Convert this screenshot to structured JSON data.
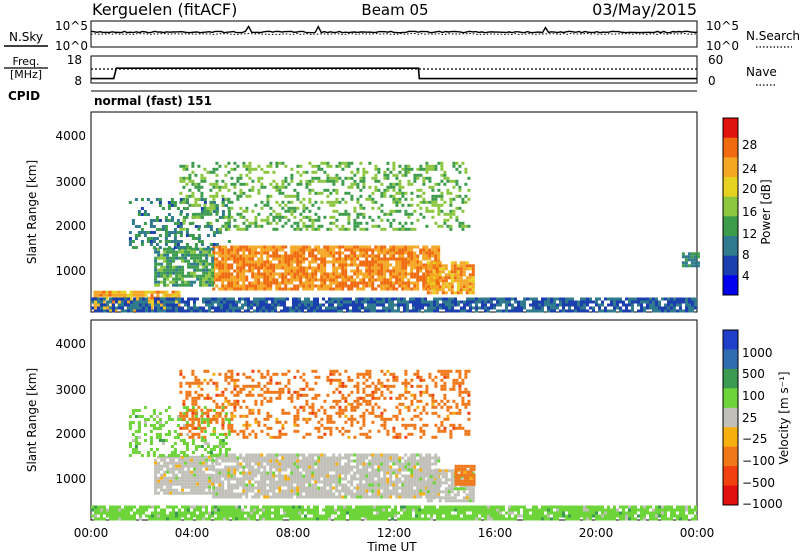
{
  "header": {
    "station": "Kerguelen (fitACF)",
    "beam": "Beam 05",
    "date": "03/May/2015"
  },
  "chart_data": [
    {
      "type": "line",
      "panel": "noise",
      "labels": {
        "left": "N.Sky",
        "right": "N.Search"
      },
      "left_ticks": [
        "10^5",
        "10^0"
      ],
      "right_ticks": [
        "10^5",
        "10^0"
      ]
    },
    {
      "type": "line",
      "panel": "frequency",
      "labels": {
        "left_top": "Freq.",
        "left_bottom": "[MHz]",
        "right": "Nave"
      },
      "left_ticks": [
        "18",
        "8"
      ],
      "right_ticks": [
        "60",
        "0"
      ],
      "freq_mhz": [
        {
          "t": 0.0,
          "v": 9.3
        },
        {
          "t": 0.9,
          "v": 9.3
        },
        {
          "t": 1.0,
          "v": 13.3
        },
        {
          "t": 12.97,
          "v": 13.3
        },
        {
          "t": 13.0,
          "v": 9.3
        },
        {
          "t": 24.0,
          "v": 9.3
        }
      ],
      "nave_level": 30
    },
    {
      "type": "table",
      "panel": "cpid",
      "label": "CPID",
      "text": "normal (fast) 151"
    },
    {
      "type": "heatmap",
      "panel": "power",
      "ylabel": "Slant Range [km]",
      "yticks": [
        "1000",
        "2000",
        "3000",
        "4000"
      ],
      "ylim": [
        180,
        4600
      ],
      "xlim": [
        0,
        24
      ],
      "colorbar": {
        "label": "Power [dB]",
        "ticks": [
          "4",
          "8",
          "12",
          "16",
          "20",
          "24",
          "28"
        ],
        "range": [
          0,
          32
        ],
        "colors": [
          "#0000ee",
          "#1c3fb0",
          "#2f7a8c",
          "#3c9c4c",
          "#8cc63f",
          "#e6d020",
          "#f5a623",
          "#f06a10",
          "#e0140c"
        ]
      },
      "regions": [
        {
          "t0": 4.8,
          "t1": 13.8,
          "r0": 700,
          "r1": 1650,
          "level": 26
        },
        {
          "t0": 13.3,
          "t1": 15.2,
          "r0": 600,
          "r1": 1300,
          "level": 24
        },
        {
          "t0": 0.1,
          "t1": 3.5,
          "r0": 250,
          "r1": 650,
          "level": 23
        },
        {
          "t0": 2.5,
          "t1": 4.8,
          "r0": 800,
          "r1": 1600,
          "level": 12
        },
        {
          "t0": 1.5,
          "t1": 5.5,
          "r0": 1600,
          "r1": 2700,
          "level": 9
        },
        {
          "t0": 3.5,
          "t1": 15.0,
          "r0": 2000,
          "r1": 3500,
          "level": 14
        },
        {
          "t0": 0.0,
          "t1": 24.0,
          "r0": 190,
          "r1": 500,
          "level": 6
        },
        {
          "t0": 23.4,
          "t1": 24.0,
          "r0": 1200,
          "r1": 1500,
          "level": 10
        }
      ]
    },
    {
      "type": "heatmap",
      "panel": "velocity",
      "ylabel": "Slant Range [km]",
      "yticks": [
        "1000",
        "2000",
        "3000",
        "4000"
      ],
      "ylim": [
        180,
        4600
      ],
      "xlim": [
        0,
        24
      ],
      "xticks": [
        "00:00",
        "04:00",
        "08:00",
        "12:00",
        "16:00",
        "20:00",
        "00:00"
      ],
      "xlabel": "Time UT",
      "colorbar": {
        "label": "Velocity [m s⁻¹]",
        "ticks": [
          "1000",
          "500",
          "100",
          "25",
          "−25",
          "−100",
          "−500",
          "−1000"
        ],
        "colors": [
          "#1f3fc8",
          "#2f6cb0",
          "#3a9a50",
          "#6dd43a",
          "#c0c0b8",
          "#f5b010",
          "#f07818",
          "#f04010",
          "#e01010"
        ]
      },
      "regions": [
        {
          "t0": 4.8,
          "t1": 13.8,
          "r0": 700,
          "r1": 1650,
          "band": 4
        },
        {
          "t0": 13.3,
          "t1": 15.2,
          "r0": 600,
          "r1": 1300,
          "band": 4
        },
        {
          "t0": 14.4,
          "t1": 15.2,
          "r0": 1000,
          "r1": 1400,
          "band": 6
        },
        {
          "t0": 2.5,
          "t1": 4.8,
          "r0": 800,
          "r1": 1600,
          "band": 4
        },
        {
          "t0": 1.5,
          "t1": 5.5,
          "r0": 1600,
          "r1": 2700,
          "band": 3
        },
        {
          "t0": 3.5,
          "t1": 15.0,
          "r0": 2000,
          "r1": 3500,
          "band": 6
        },
        {
          "t0": 0.0,
          "t1": 24.0,
          "r0": 190,
          "r1": 500,
          "band": 3
        }
      ]
    }
  ]
}
